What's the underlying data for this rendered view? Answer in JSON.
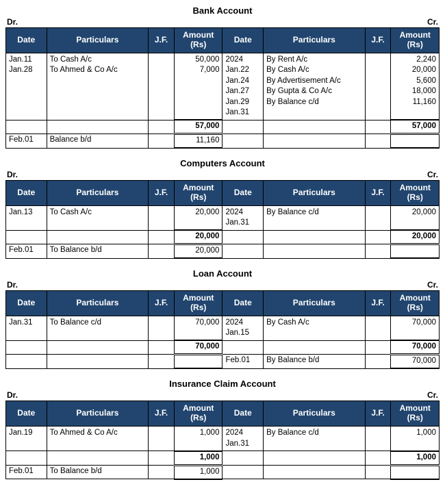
{
  "headers": {
    "date": "Date",
    "particulars": "Particulars",
    "jf": "J.F.",
    "amount": "Amount (Rs)"
  },
  "dr_label": "Dr.",
  "cr_label": "Cr.",
  "colors": {
    "header_bg": "#21456e",
    "header_fg": "#ffffff",
    "border": "#000000",
    "page_bg": "#ffffff"
  },
  "ledgers": [
    {
      "title": "Bank Account",
      "dr": {
        "year": "",
        "entries": [
          {
            "date": "Jan.11",
            "part": "To Cash A/c",
            "amt": "50,000"
          },
          {
            "date": "Jan.28",
            "part": "To Ahmed & Co A/c",
            "amt": "7,000"
          }
        ],
        "total": "57,000",
        "bd": {
          "date": "Feb.01",
          "part": "Balance b/d",
          "amt": "11,160"
        }
      },
      "cr": {
        "year": "2024",
        "entries": [
          {
            "date": "Jan.22",
            "part": "By Rent A/c",
            "amt": "2,240"
          },
          {
            "date": "Jan.24",
            "part": "By Cash A/c",
            "amt": "20,000"
          },
          {
            "date": "Jan.27",
            "part": "By Advertisement A/c",
            "amt": "5,600"
          },
          {
            "date": "Jan.29",
            "part": "By Gupta & Co A/c",
            "amt": "18,000"
          },
          {
            "date": "Jan.31",
            "part": "By Balance c/d",
            "amt": "11,160"
          }
        ],
        "total": "57,000",
        "bd": null
      }
    },
    {
      "title": "Computers Account",
      "dr": {
        "year": "",
        "entries": [
          {
            "date": "Jan.13",
            "part": "To Cash A/c",
            "amt": "20,000"
          }
        ],
        "total": "20,000",
        "bd": {
          "date": "Feb.01",
          "part": "To Balance b/d",
          "amt": "20,000"
        }
      },
      "cr": {
        "year": "2024",
        "entries": [
          {
            "date": "Jan.31",
            "part": "By Balance c/d",
            "amt": "20,000"
          }
        ],
        "total": "20,000",
        "bd": null
      }
    },
    {
      "title": "Loan Account",
      "dr": {
        "year": "",
        "entries": [
          {
            "date": "Jan.31",
            "part": "To Balance c/d",
            "amt": "70,000"
          }
        ],
        "total": "70,000",
        "bd": null
      },
      "cr": {
        "year": "2024",
        "entries": [
          {
            "date": "Jan.15",
            "part": "By Cash A/c",
            "amt": "70,000"
          }
        ],
        "total": "70,000",
        "bd": {
          "date": "Feb.01",
          "part": "By Balance b/d",
          "amt": "70,000"
        }
      }
    },
    {
      "title": "Insurance Claim Account",
      "dr": {
        "year": "",
        "entries": [
          {
            "date": "Jan.19",
            "part": "To Ahmed & Co A/c",
            "amt": "1,000"
          }
        ],
        "total": "1,000",
        "bd": {
          "date": "Feb.01",
          "part": "To Balance b/d",
          "amt": "1,000"
        }
      },
      "cr": {
        "year": "2024",
        "entries": [
          {
            "date": "Jan.31",
            "part": "By Balance c/d",
            "amt": "1,000"
          }
        ],
        "total": "1,000",
        "bd": null
      }
    }
  ]
}
